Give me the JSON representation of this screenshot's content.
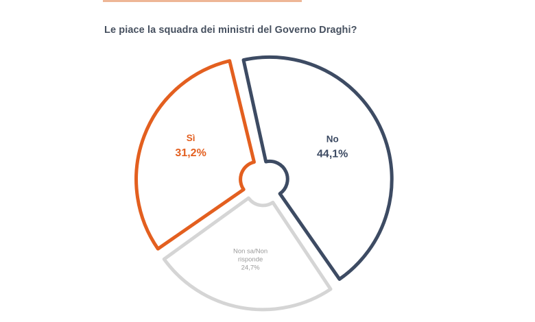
{
  "question": "Le piace la squadra dei ministri del Governo Draghi?",
  "colors": {
    "si": "#e35f1f",
    "no": "#3d4b63",
    "non_sa": "#d5d5d5",
    "non_sa_text": "#9a9a9a",
    "background": "#ffffff"
  },
  "chart_data": {
    "type": "pie",
    "title": "Le piace la squadra dei ministri del Governo Draghi?",
    "style": "exploded outline pie",
    "slices": [
      {
        "key": "no",
        "label": "No",
        "value": 44.1,
        "value_label": "44,1%"
      },
      {
        "key": "non_sa",
        "label": "Non sa/Non risponde",
        "label_lines": [
          "Non sa/Non",
          "risponde"
        ],
        "value": 24.7,
        "value_label": "24,7%"
      },
      {
        "key": "si",
        "label": "Sì",
        "value": 31.2,
        "value_label": "31,2%"
      }
    ]
  }
}
